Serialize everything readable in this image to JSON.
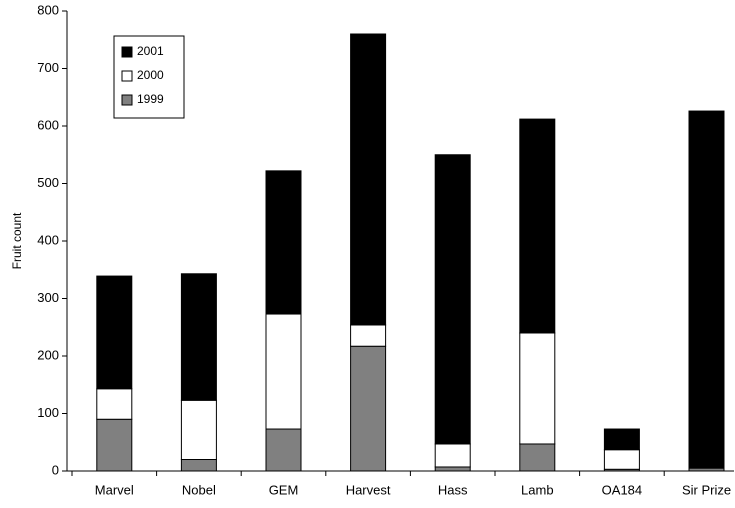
{
  "chart_data": {
    "type": "stacked_bar",
    "y_label": "Fruit count",
    "categories": [
      "Marvel",
      "Nobel",
      "GEM",
      "Harvest",
      "Hass",
      "Lamb",
      "OA184",
      "Sir Prize"
    ],
    "series": [
      {
        "name": "1999",
        "color": "#808080",
        "values": [
          90,
          20,
          73,
          217,
          7,
          47,
          3,
          5
        ]
      },
      {
        "name": "2000",
        "color": "#ffffff",
        "values": [
          53,
          103,
          200,
          37,
          40,
          193,
          34,
          0
        ]
      },
      {
        "name": "2001",
        "color": "#000000",
        "values": [
          196,
          220,
          249,
          506,
          503,
          372,
          36,
          621
        ]
      }
    ],
    "ylim": [
      0,
      800
    ],
    "yticks": [
      0,
      100,
      200,
      300,
      400,
      500,
      600,
      700,
      800
    ],
    "grid": false,
    "legend": "upper-left"
  }
}
